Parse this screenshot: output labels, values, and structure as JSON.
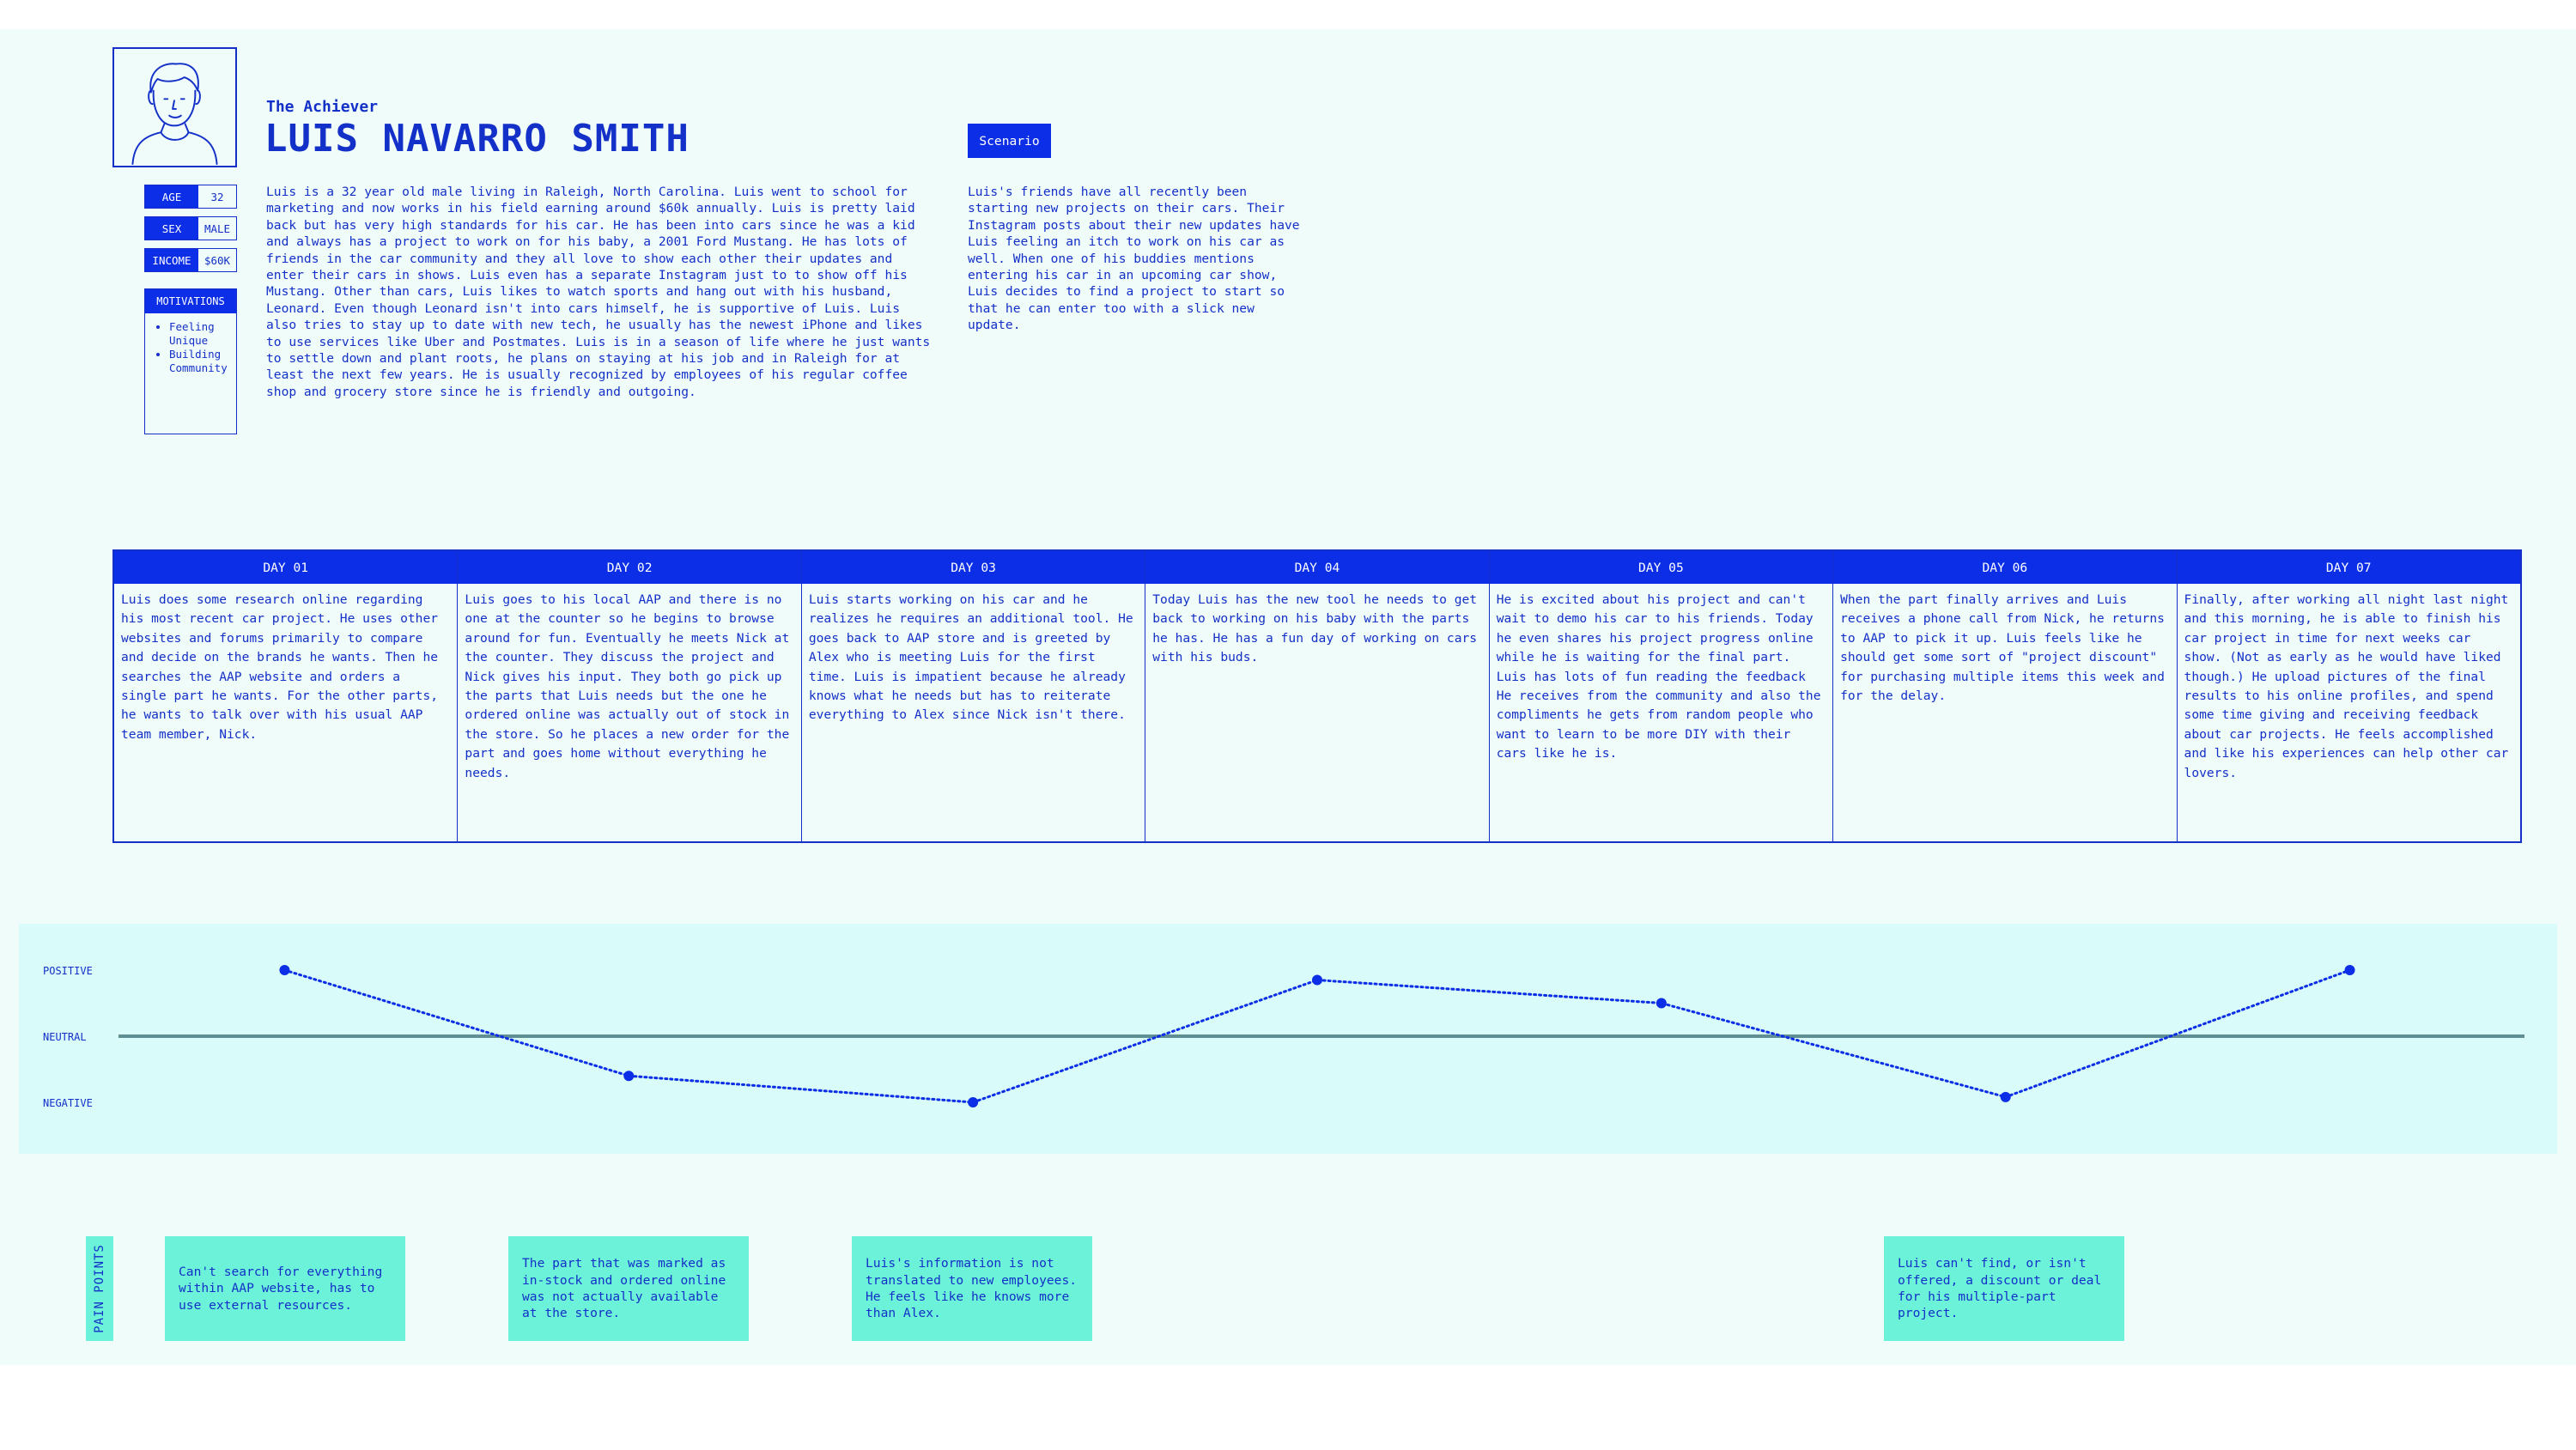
{
  "persona": {
    "archetype": "The Achiever",
    "name": "LUIS NAVARRO SMITH",
    "avatar_icon": "person-avatar-icon",
    "stats": [
      {
        "label": "AGE",
        "value": "32"
      },
      {
        "label": "SEX",
        "value": "MALE"
      },
      {
        "label": "INCOME",
        "value": "$60K"
      }
    ],
    "motivations_label": "MOTIVATIONS",
    "motivations": [
      "Feeling Unique",
      "Building Community"
    ],
    "bio": "Luis is a 32 year old male living in Raleigh, North Carolina. Luis went to school for marketing and now works in his field earning around $60k annually. Luis is pretty laid back but has very high standards for his car. He has been into cars since he was a kid and always has a project to work on for his baby, a 2001 Ford Mustang. He has lots of friends in the car community and they all love to show each other their updates and enter their cars in shows. Luis even has a separate Instagram just to to show off his Mustang. Other than cars, Luis likes to watch sports and hang out with his husband, Leonard. Even though Leonard isn't into cars himself, he is supportive of Luis. Luis also tries to stay up to date with new tech, he usually has the newest iPhone and likes to use services like Uber and Postmates. Luis is in a season of life where he just wants to settle down and plant roots, he plans on staying at his job and in Raleigh for at least the next few years. He is usually recognized by employees of his regular coffee shop and grocery store since he is friendly and outgoing."
  },
  "scenario": {
    "label": "Scenario",
    "text": "Luis's friends have all recently been starting new projects on their cars. Their Instagram posts about their new updates have Luis feeling an itch to work on his car as well. When one of his buddies mentions entering his car in an upcoming car show, Luis decides to find a project to start so that he can enter too with a slick new update."
  },
  "days": [
    {
      "label": "DAY 01",
      "text": "Luis does some research online regarding his most recent car project. He uses other websites and forums primarily to compare and decide on the brands he wants. Then he searches the AAP website and orders a single part he wants. For the other parts, he wants to talk over with his usual AAP team member, Nick."
    },
    {
      "label": "DAY 02",
      "text": "Luis goes to his local AAP and there is no one at the counter so he begins to browse around for fun.  Eventually he meets Nick at the counter. They discuss the project and Nick gives his input. They both go pick up the parts that Luis needs but the one he ordered online was actually out of stock in the store. So he places a new order for the part and goes home without everything he needs."
    },
    {
      "label": "DAY 03",
      "text": "Luis starts working on his car and he realizes he requires an additional tool. He goes back to AAP store and is greeted by Alex who is meeting Luis for the first time. Luis is impatient because he already knows what he needs but has to reiterate everything to Alex since Nick isn't there."
    },
    {
      "label": "DAY 04",
      "text": "Today Luis has the new tool he needs to get back to working on his baby with the parts he has. He has a fun day of working on cars with his buds."
    },
    {
      "label": "DAY 05",
      "text": "He is excited about his project and can't wait to demo his car to his friends. Today he even shares his project progress online while he is waiting for the final part. Luis has lots of fun reading the feedback He receives from the community and also the compliments he gets from random people who want to learn to be more DIY with their cars like he is."
    },
    {
      "label": "DAY 06",
      "text": "When the part finally arrives and Luis receives a phone call from Nick, he returns to AAP to pick it up. Luis feels like he should get some sort of \"project discount\" for purchasing multiple items this week and for the delay."
    },
    {
      "label": "DAY 07",
      "text": "Finally, after working all night last night and this morning, he is able to finish his car project in time for next weeks car show. (Not as early as he would have liked though.) He upload pictures of the final results to his online profiles, and spend some time giving and receiving feedback about car projects. He feels accomplished and like his experiences can help other car lovers."
    }
  ],
  "emotion": {
    "labels": {
      "positive": "POSITIVE",
      "neutral": "NEUTRAL",
      "negative": "NEGATIVE"
    },
    "levels": [
      1,
      -0.6,
      -1,
      0.85,
      0.5,
      -0.92,
      1
    ],
    "colors": {
      "line": "#0b2ee6",
      "neutral": "#5f8f93",
      "band": "#d9fbfa"
    }
  },
  "pain_points": {
    "label": "PAIN POINTS",
    "items": [
      {
        "day": 1,
        "text": "Can't search for everything within AAP website, has to use external resources."
      },
      {
        "day": 2,
        "text": "The part that was marked as in-stock and ordered online was not actually available at the store."
      },
      {
        "day": 3,
        "text": "Luis's information is not translated to new employees. He feels like he knows more than Alex."
      },
      {
        "day": 6,
        "text": "Luis can't find, or isn't offered, a discount or deal for his multiple-part project."
      }
    ]
  }
}
